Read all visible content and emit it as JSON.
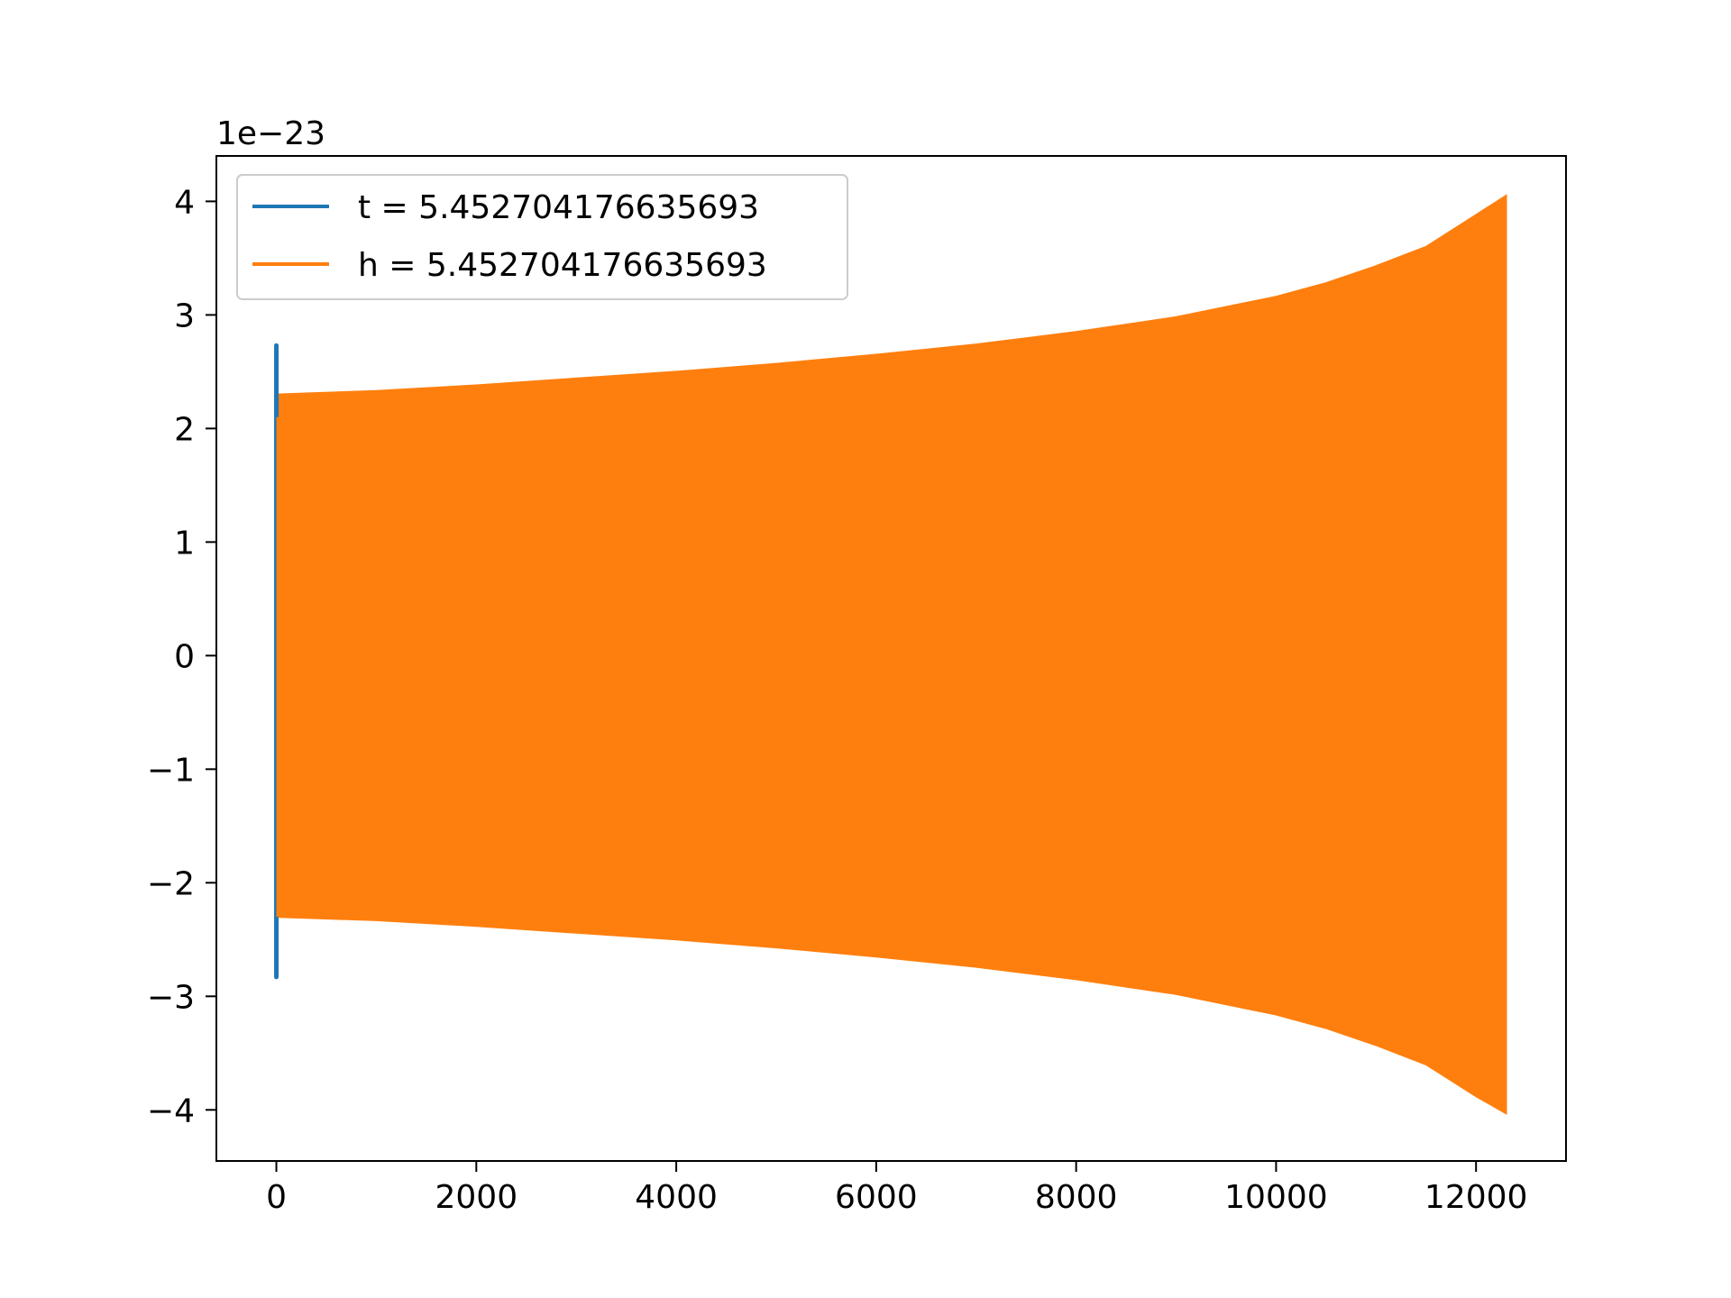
{
  "chart_data": {
    "type": "line",
    "title": "",
    "xlabel": "",
    "ylabel": "",
    "y_offset_label": "1e−23",
    "xlim": [
      -600,
      12900
    ],
    "ylim": [
      -4.45,
      4.4
    ],
    "xticks": [
      0,
      2000,
      4000,
      6000,
      8000,
      10000,
      12000
    ],
    "xtick_labels": [
      "0",
      "2000",
      "4000",
      "6000",
      "8000",
      "10000",
      "12000"
    ],
    "yticks": [
      -4,
      -3,
      -2,
      -1,
      0,
      1,
      2,
      3,
      4
    ],
    "ytick_labels": [
      "−4",
      "−3",
      "−2",
      "−1",
      "0",
      "1",
      "2",
      "3",
      "4"
    ],
    "grid": false,
    "legend_position": "top-left",
    "series": [
      {
        "name": "t = 5.452704176635693",
        "color": "#1f77b4",
        "description_points": {
          "x": [
            0,
            0,
            0
          ],
          "y": [
            2.73,
            0.8,
            -2.83
          ]
        }
      },
      {
        "name": "h = 5.452704176635693",
        "color": "#ff7f0e",
        "envelope": {
          "x": [
            0,
            1000,
            2000,
            3000,
            4000,
            5000,
            6000,
            7000,
            8000,
            9000,
            10000,
            10500,
            11000,
            11500,
            12000,
            12300
          ],
          "upper": [
            2.3,
            2.33,
            2.38,
            2.44,
            2.5,
            2.57,
            2.65,
            2.74,
            2.85,
            2.98,
            3.16,
            3.28,
            3.43,
            3.6,
            3.88,
            4.05
          ],
          "lower": [
            -2.3,
            -2.33,
            -2.38,
            -2.44,
            -2.5,
            -2.57,
            -2.65,
            -2.74,
            -2.85,
            -2.98,
            -3.16,
            -3.28,
            -3.43,
            -3.6,
            -3.88,
            -4.03
          ]
        }
      }
    ]
  },
  "colors": {
    "series_t": "#1f77b4",
    "series_h": "#ff7f0e",
    "axes": "#000000",
    "background": "#ffffff"
  }
}
